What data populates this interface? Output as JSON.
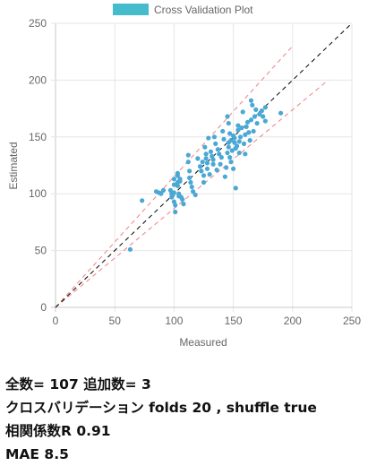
{
  "chart_data": {
    "type": "scatter",
    "legend": {
      "label": "Cross Validation Plot",
      "color": "#45bccb",
      "position": "top"
    },
    "xlabel": "Measured",
    "ylabel": "Estimated",
    "xlim": [
      0,
      250
    ],
    "ylim": [
      0,
      250
    ],
    "xticks": [
      "0",
      "50",
      "100",
      "150",
      "200",
      "250"
    ],
    "yticks": [
      "0",
      "50",
      "100",
      "150",
      "200",
      "250"
    ],
    "grid": true,
    "point_color": "#4aa8d4",
    "identity_line": {
      "x": [
        0,
        250
      ],
      "y": [
        0,
        250
      ],
      "color": "#000000",
      "style": "dashed"
    },
    "bound_lines": [
      {
        "x": [
          0,
          200
        ],
        "y": [
          0,
          230
        ],
        "color": "#f08080",
        "style": "dashed"
      },
      {
        "x": [
          0,
          230
        ],
        "y": [
          0,
          200
        ],
        "color": "#f08080",
        "style": "dashed"
      }
    ],
    "points": [
      [
        63,
        51
      ],
      [
        73,
        94
      ],
      [
        85,
        102
      ],
      [
        87,
        101
      ],
      [
        89,
        100
      ],
      [
        91,
        103
      ],
      [
        97,
        103
      ],
      [
        98,
        100
      ],
      [
        98,
        97
      ],
      [
        99,
        99
      ],
      [
        100,
        113
      ],
      [
        100,
        108
      ],
      [
        100,
        101
      ],
      [
        100,
        93
      ],
      [
        101,
        90
      ],
      [
        101,
        84
      ],
      [
        103,
        118
      ],
      [
        103,
        116
      ],
      [
        103,
        110
      ],
      [
        103,
        107
      ],
      [
        104,
        100
      ],
      [
        104,
        98
      ],
      [
        105,
        113
      ],
      [
        105,
        111
      ],
      [
        106,
        97
      ],
      [
        107,
        95
      ],
      [
        108,
        91
      ],
      [
        112,
        134
      ],
      [
        112,
        128
      ],
      [
        113,
        120
      ],
      [
        113,
        114
      ],
      [
        114,
        110
      ],
      [
        115,
        106
      ],
      [
        116,
        102
      ],
      [
        118,
        99
      ],
      [
        120,
        131
      ],
      [
        122,
        124
      ],
      [
        123,
        120
      ],
      [
        124,
        128
      ],
      [
        125,
        116
      ],
      [
        125,
        110
      ],
      [
        126,
        141
      ],
      [
        127,
        135
      ],
      [
        127,
        131
      ],
      [
        128,
        127
      ],
      [
        128,
        122
      ],
      [
        129,
        149
      ],
      [
        130,
        117
      ],
      [
        131,
        137
      ],
      [
        132,
        133
      ],
      [
        133,
        130
      ],
      [
        133,
        126
      ],
      [
        134,
        150
      ],
      [
        135,
        144
      ],
      [
        136,
        121
      ],
      [
        137,
        139
      ],
      [
        138,
        135
      ],
      [
        139,
        126
      ],
      [
        140,
        132
      ],
      [
        141,
        155
      ],
      [
        142,
        148
      ],
      [
        143,
        115
      ],
      [
        144,
        123
      ],
      [
        145,
        136
      ],
      [
        145,
        168
      ],
      [
        146,
        162
      ],
      [
        146,
        145
      ],
      [
        146,
        141
      ],
      [
        147,
        153
      ],
      [
        147,
        132
      ],
      [
        148,
        147
      ],
      [
        148,
        128
      ],
      [
        149,
        138
      ],
      [
        150,
        151
      ],
      [
        150,
        122
      ],
      [
        151,
        145
      ],
      [
        151,
        149
      ],
      [
        152,
        140
      ],
      [
        152,
        105
      ],
      [
        153,
        142
      ],
      [
        154,
        156
      ],
      [
        154,
        160
      ],
      [
        155,
        146
      ],
      [
        155,
        136
      ],
      [
        156,
        150
      ],
      [
        157,
        158
      ],
      [
        158,
        172
      ],
      [
        159,
        144
      ],
      [
        160,
        152
      ],
      [
        160,
        135
      ],
      [
        161,
        159
      ],
      [
        162,
        163
      ],
      [
        163,
        154
      ],
      [
        164,
        147
      ],
      [
        165,
        165
      ],
      [
        166,
        178
      ],
      [
        167,
        155
      ],
      [
        168,
        168
      ],
      [
        169,
        174
      ],
      [
        170,
        162
      ],
      [
        172,
        170
      ],
      [
        174,
        173
      ],
      [
        175,
        168
      ],
      [
        177,
        176
      ],
      [
        177,
        164
      ],
      [
        190,
        171
      ],
      [
        165,
        182
      ]
    ]
  },
  "stats": {
    "line1": "全数= 107 追加数= 3",
    "line2": "クロスバリデーション folds 20 , shuffle true",
    "line3": "相関係数R 0.91",
    "line4": "MAE 8.5"
  }
}
